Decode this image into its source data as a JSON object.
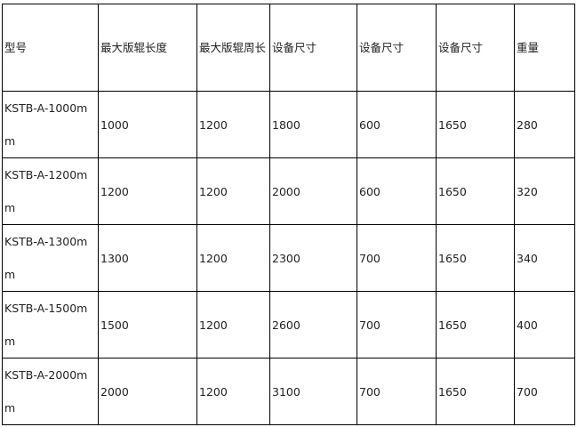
{
  "table": {
    "headers": [
      "型号",
      "最大版辊长度",
      "最大版辊周长",
      "设备尺寸",
      "设备尺寸",
      "设备尺寸",
      "重量"
    ],
    "rows": [
      [
        "KSTB-A-1000mm",
        "1000",
        "1200",
        "1800",
        "600",
        "1650",
        "280"
      ],
      [
        "KSTB-A-1200mm",
        "1200",
        "1200",
        "2000",
        "600",
        "1650",
        "320"
      ],
      [
        "KSTB-A-1300mm",
        "1300",
        "1200",
        "2300",
        "700",
        "1650",
        "340"
      ],
      [
        "KSTB-A-1500mm",
        "1500",
        "1200",
        "2600",
        "700",
        "1650",
        "400"
      ],
      [
        "KSTB-A-2000mm",
        "2000",
        "1200",
        "3100",
        "700",
        "1650",
        "700"
      ]
    ]
  }
}
